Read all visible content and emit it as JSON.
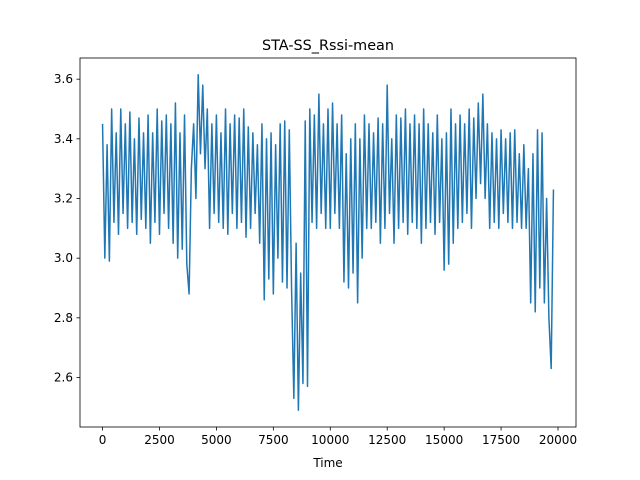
{
  "chart_data": {
    "type": "line",
    "title": "STA-SS_Rssi-mean",
    "x_label": "Time",
    "color": "#1f77b4",
    "x": [
      0,
      100,
      200,
      300,
      400,
      500,
      600,
      700,
      800,
      900,
      1000,
      1100,
      1200,
      1300,
      1400,
      1500,
      1600,
      1700,
      1800,
      1900,
      2000,
      2100,
      2200,
      2300,
      2400,
      2500,
      2600,
      2700,
      2800,
      2900,
      3000,
      3100,
      3200,
      3300,
      3400,
      3500,
      3600,
      3700,
      3800,
      3900,
      4000,
      4100,
      4200,
      4300,
      4400,
      4500,
      4600,
      4700,
      4800,
      4900,
      5000,
      5100,
      5200,
      5300,
      5400,
      5500,
      5600,
      5700,
      5800,
      5900,
      6000,
      6100,
      6200,
      6300,
      6400,
      6500,
      6600,
      6700,
      6800,
      6900,
      7000,
      7100,
      7200,
      7300,
      7400,
      7500,
      7600,
      7700,
      7800,
      7900,
      8000,
      8100,
      8200,
      8300,
      8400,
      8500,
      8600,
      8700,
      8800,
      8900,
      9000,
      9100,
      9200,
      9300,
      9400,
      9500,
      9600,
      9700,
      9800,
      9900,
      10000,
      10100,
      10200,
      10300,
      10400,
      10500,
      10600,
      10700,
      10800,
      10900,
      11000,
      11100,
      11200,
      11300,
      11400,
      11500,
      11600,
      11700,
      11800,
      11900,
      12000,
      12100,
      12200,
      12300,
      12400,
      12500,
      12600,
      12700,
      12800,
      12900,
      13000,
      13100,
      13200,
      13300,
      13400,
      13500,
      13600,
      13700,
      13800,
      13900,
      14000,
      14100,
      14200,
      14300,
      14400,
      14500,
      14600,
      14700,
      14800,
      14900,
      15000,
      15100,
      15200,
      15300,
      15400,
      15500,
      15600,
      15700,
      15800,
      15900,
      16000,
      16100,
      16200,
      16300,
      16400,
      16500,
      16600,
      16700,
      16800,
      16900,
      17000,
      17100,
      17200,
      17300,
      17400,
      17500,
      17600,
      17700,
      17800,
      17900,
      18000,
      18100,
      18200,
      18300,
      18400,
      18500,
      18600,
      18700,
      18800,
      18900,
      19000,
      19100,
      19200,
      19300,
      19400,
      19500,
      19600,
      19700,
      19800
    ],
    "values": [
      3.45,
      3.0,
      3.38,
      2.99,
      3.5,
      3.12,
      3.42,
      3.08,
      3.5,
      3.15,
      3.45,
      3.1,
      3.49,
      3.12,
      3.4,
      3.08,
      3.47,
      3.13,
      3.42,
      3.1,
      3.48,
      3.05,
      3.42,
      3.12,
      3.5,
      3.08,
      3.46,
      3.15,
      3.48,
      3.1,
      3.45,
      3.05,
      3.52,
      3.0,
      3.42,
      3.03,
      3.48,
      2.98,
      2.88,
      3.3,
      3.45,
      3.2,
      3.615,
      3.35,
      3.58,
      3.3,
      3.5,
      3.1,
      3.45,
      3.15,
      3.48,
      3.12,
      3.42,
      3.1,
      3.5,
      3.08,
      3.45,
      3.15,
      3.48,
      3.1,
      3.47,
      3.12,
      3.5,
      3.07,
      3.44,
      3.1,
      3.42,
      3.15,
      3.38,
      3.05,
      3.45,
      2.86,
      3.4,
      2.93,
      3.42,
      2.88,
      3.38,
      3.0,
      3.45,
      2.92,
      3.46,
      2.9,
      3.43,
      2.9,
      2.53,
      3.05,
      2.49,
      2.95,
      2.58,
      3.46,
      2.57,
      3.5,
      3.12,
      3.48,
      3.1,
      3.55,
      3.15,
      3.45,
      3.1,
      3.5,
      3.1,
      3.52,
      3.15,
      3.45,
      3.1,
      3.48,
      2.92,
      3.35,
      2.9,
      3.4,
      2.95,
      3.45,
      2.85,
      3.4,
      3.0,
      3.48,
      3.1,
      3.45,
      3.1,
      3.42,
      3.12,
      3.47,
      3.05,
      3.45,
      3.1,
      3.58,
      3.15,
      3.4,
      3.05,
      3.48,
      3.1,
      3.47,
      3.12,
      3.5,
      3.08,
      3.45,
      3.12,
      3.48,
      3.1,
      3.45,
      3.05,
      3.5,
      3.1,
      3.45,
      3.12,
      3.42,
      3.08,
      3.48,
      3.12,
      3.4,
      2.96,
      3.42,
      2.98,
      3.5,
      3.05,
      3.45,
      3.1,
      3.48,
      3.12,
      3.45,
      3.15,
      3.5,
      3.1,
      3.47,
      3.2,
      3.52,
      3.25,
      3.55,
      3.2,
      3.45,
      3.1,
      3.42,
      3.12,
      3.4,
      3.1,
      3.43,
      3.15,
      3.4,
      3.12,
      3.42,
      3.1,
      3.43,
      3.12,
      3.35,
      3.1,
      3.38,
      3.1,
      3.3,
      2.85,
      3.35,
      2.82,
      3.43,
      2.9,
      3.42,
      2.85,
      3.2,
      2.8,
      2.63,
      3.23
    ],
    "xlim": [
      -990,
      20790
    ],
    "xticks": [
      0,
      2500,
      5000,
      7500,
      10000,
      12500,
      15000,
      17500,
      20000
    ],
    "ylim": [
      2.434,
      3.671
    ],
    "yticks": [
      2.6,
      2.8,
      {
        "value": 3,
        "label": "3.0"
      },
      3.2,
      3.4,
      3.6
    ]
  }
}
